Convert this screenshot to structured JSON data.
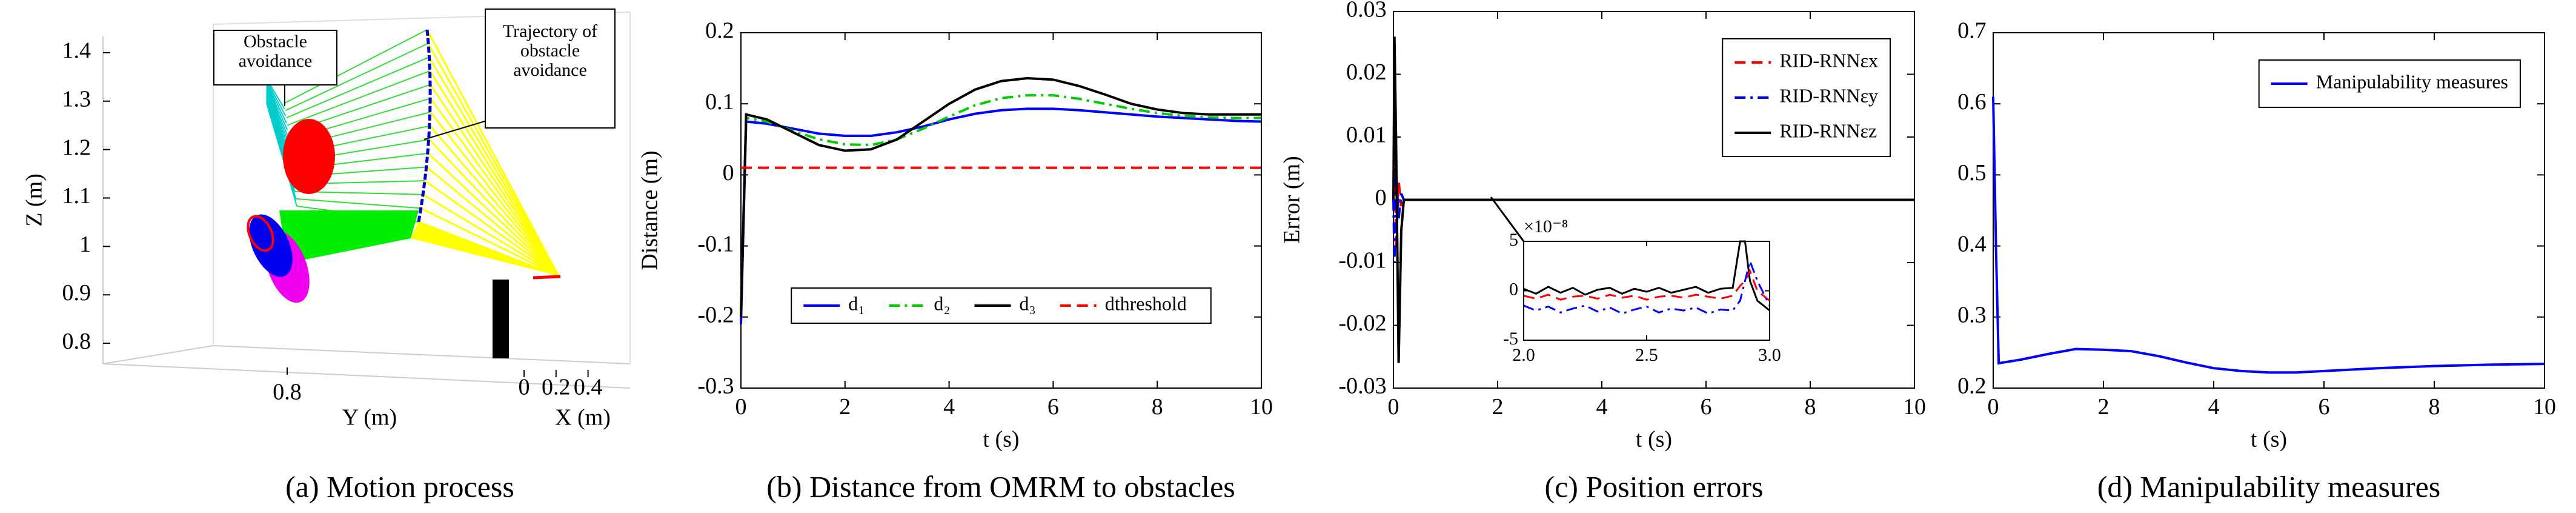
{
  "chart_data": [
    {
      "type": "3d",
      "caption": "(a) Motion process",
      "zlabel": "Z (m)",
      "ylabel": "Y (m)",
      "xlabel": "X (m)",
      "zlim": [
        0.75,
        1.45
      ],
      "zticks": [
        0.8,
        0.9,
        1.0,
        1.1,
        1.2,
        1.3,
        1.4
      ],
      "ylim": [
        0.6,
        1.0
      ],
      "yticks": [
        0.8
      ],
      "xlim": [
        0,
        0.5
      ],
      "xticks": [
        0,
        0.2,
        0.4
      ],
      "annotations": [
        "Obstacle avoidance",
        "Trajectory of obstacle avoidance"
      ]
    },
    {
      "type": "line",
      "caption": "(b) Distance from OMRM to obstacles",
      "xlabel": "t (s)",
      "ylabel": "Distance (m)",
      "xlim": [
        0,
        10
      ],
      "xticks": [
        0,
        2,
        4,
        6,
        8,
        10
      ],
      "ylim": [
        -0.3,
        0.2
      ],
      "yticks": [
        -0.3,
        -0.2,
        -0.1,
        0,
        0.1,
        0.2
      ],
      "legend": "lower center",
      "x": [
        0,
        0.1,
        0.5,
        1,
        1.5,
        2,
        2.5,
        3,
        3.5,
        4,
        4.5,
        5,
        5.5,
        6,
        6.5,
        7,
        7.5,
        8,
        8.5,
        9,
        9.5,
        10
      ],
      "series": [
        {
          "name": "d₁",
          "color": "#0000ff",
          "style": "solid",
          "values": [
            -0.21,
            0.075,
            0.072,
            0.065,
            0.058,
            0.055,
            0.055,
            0.06,
            0.068,
            0.078,
            0.086,
            0.091,
            0.093,
            0.093,
            0.091,
            0.088,
            0.085,
            0.082,
            0.08,
            0.078,
            0.076,
            0.075
          ]
        },
        {
          "name": "d₂",
          "color": "#00cc00",
          "style": "dashdot",
          "values": [
            -0.19,
            0.08,
            0.075,
            0.062,
            0.05,
            0.043,
            0.042,
            0.05,
            0.065,
            0.082,
            0.098,
            0.108,
            0.112,
            0.112,
            0.107,
            0.1,
            0.093,
            0.087,
            0.083,
            0.081,
            0.08,
            0.08
          ]
        },
        {
          "name": "d₃",
          "color": "#000000",
          "style": "solid",
          "values": [
            -0.2,
            0.085,
            0.078,
            0.06,
            0.042,
            0.034,
            0.036,
            0.05,
            0.075,
            0.1,
            0.12,
            0.132,
            0.136,
            0.134,
            0.125,
            0.113,
            0.1,
            0.092,
            0.087,
            0.085,
            0.085,
            0.085
          ]
        },
        {
          "name": "dthreshold",
          "color": "#ff0000",
          "style": "dashed",
          "values": [
            0.01,
            0.01,
            0.01,
            0.01,
            0.01,
            0.01,
            0.01,
            0.01,
            0.01,
            0.01,
            0.01,
            0.01,
            0.01,
            0.01,
            0.01,
            0.01,
            0.01,
            0.01,
            0.01,
            0.01,
            0.01,
            0.01
          ]
        }
      ]
    },
    {
      "type": "line",
      "caption": "(c) Position errors",
      "xlabel": "t (s)",
      "ylabel": "Error (m)",
      "xlim": [
        0,
        10
      ],
      "xticks": [
        0,
        2,
        4,
        6,
        8,
        10
      ],
      "ylim": [
        -0.03,
        0.03
      ],
      "yticks": [
        -0.03,
        -0.02,
        -0.01,
        0,
        0.01,
        0.02,
        0.03
      ],
      "legend": "upper right",
      "x": [
        0,
        0.02,
        0.05,
        0.1,
        0.15,
        0.2,
        1,
        10
      ],
      "series": [
        {
          "name": "RID-RNNεx",
          "color": "#ff0000",
          "style": "dashed",
          "values": [
            0,
            0.012,
            -0.008,
            0.003,
            -0.001,
            0,
            0,
            0
          ]
        },
        {
          "name": "RID-RNNεy",
          "color": "#0000ff",
          "style": "dashdot",
          "values": [
            0,
            -0.01,
            0.005,
            -0.003,
            0.001,
            0,
            0,
            0
          ]
        },
        {
          "name": "RID-RNNεz",
          "color": "#000000",
          "style": "solid",
          "values": [
            0,
            0.026,
            0.01,
            -0.026,
            -0.005,
            0,
            0,
            0
          ]
        }
      ],
      "inset": {
        "scale_label": "×10⁻⁸",
        "xlim": [
          2,
          3
        ],
        "xticks": [
          {
            "value": 2,
            "label": "2.0"
          },
          {
            "value": 2.5,
            "label": "2.5"
          },
          {
            "value": 3,
            "label": "3.0"
          }
        ],
        "ylim": [
          -5,
          5
        ],
        "yticks": [
          -5,
          0,
          5
        ],
        "x": [
          2.0,
          2.05,
          2.1,
          2.15,
          2.2,
          2.25,
          2.3,
          2.35,
          2.4,
          2.45,
          2.5,
          2.55,
          2.6,
          2.65,
          2.7,
          2.75,
          2.8,
          2.85,
          2.88,
          2.9,
          2.92,
          2.95,
          3.0
        ],
        "series": [
          {
            "color": "#000000",
            "style": "solid",
            "values": [
              0.2,
              -0.3,
              0.4,
              -0.2,
              0.3,
              -0.4,
              0.1,
              0.3,
              -0.3,
              0.2,
              -0.1,
              0.3,
              -0.2,
              0.1,
              0.4,
              -0.2,
              0.2,
              0.3,
              5,
              5,
              1,
              -1,
              -2
            ]
          },
          {
            "color": "#ff0000",
            "style": "dashed",
            "values": [
              -0.5,
              -0.8,
              -0.4,
              -0.9,
              -0.6,
              -0.5,
              -0.8,
              -0.4,
              -0.7,
              -0.5,
              -0.9,
              -0.6,
              -0.5,
              -0.7,
              -0.4,
              -0.6,
              -0.8,
              -0.5,
              0.5,
              1,
              2,
              0,
              -1
            ]
          },
          {
            "color": "#0000ff",
            "style": "dashdot",
            "values": [
              -1.5,
              -2,
              -1.6,
              -2.2,
              -1.8,
              -1.5,
              -2.1,
              -1.7,
              -2.3,
              -1.9,
              -1.6,
              -2.2,
              -1.8,
              -2,
              -1.7,
              -2.3,
              -1.9,
              -2,
              -1,
              1,
              3,
              1,
              -1.5
            ]
          }
        ]
      }
    },
    {
      "type": "line",
      "caption": "(d) Manipulability measures",
      "xlabel": "t (s)",
      "xlim": [
        0,
        10
      ],
      "xticks": [
        0,
        2,
        4,
        6,
        8,
        10
      ],
      "ylim": [
        0.2,
        0.7
      ],
      "yticks": [
        0.2,
        0.3,
        0.4,
        0.5,
        0.6,
        0.7
      ],
      "legend": "upper right",
      "x": [
        0,
        0.05,
        0.1,
        0.5,
        1,
        1.5,
        2,
        2.5,
        3,
        3.5,
        4,
        4.5,
        5,
        5.5,
        6,
        7,
        8,
        9,
        10
      ],
      "series": [
        {
          "name": "Manipulability measures",
          "color": "#0000ff",
          "style": "solid",
          "values": [
            0.61,
            0.4,
            0.235,
            0.24,
            0.248,
            0.255,
            0.254,
            0.252,
            0.245,
            0.236,
            0.228,
            0.224,
            0.222,
            0.222,
            0.224,
            0.228,
            0.231,
            0.233,
            0.234
          ]
        }
      ]
    }
  ]
}
